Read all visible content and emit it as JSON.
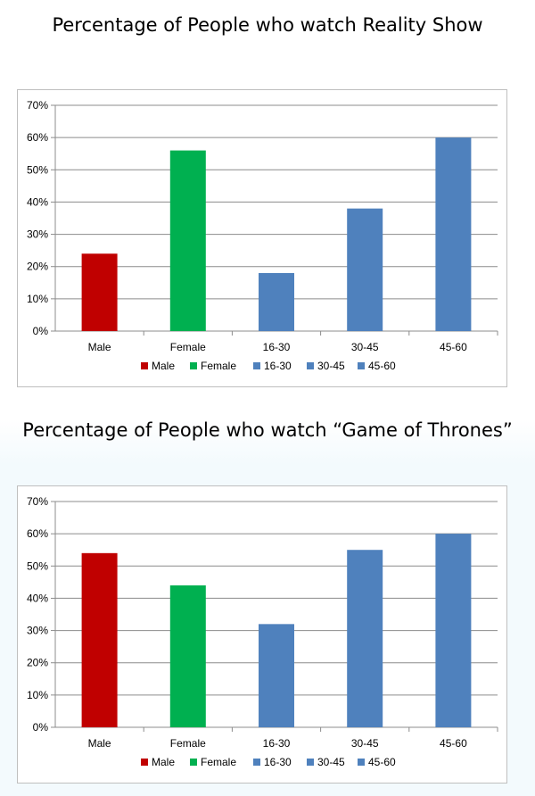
{
  "chart_data": [
    {
      "type": "bar",
      "title": "Percentage of People who watch Reality Show",
      "categories": [
        "Male",
        "Female",
        "16-30",
        "30-45",
        "45-60"
      ],
      "values": [
        24,
        56,
        18,
        38,
        60
      ],
      "colors": [
        "#c00000",
        "#00b050",
        "#4f81bd",
        "#4f81bd",
        "#4f81bd"
      ],
      "legend": [
        "Male",
        "Female",
        "16-30",
        "30-45",
        "45-60"
      ],
      "legend_position": "bottom",
      "ylim": [
        0,
        70
      ],
      "yticks": [
        "0%",
        "10%",
        "20%",
        "30%",
        "40%",
        "50%",
        "60%",
        "70%"
      ],
      "grid": true
    },
    {
      "type": "bar",
      "title": "Percentage of People who watch “Game of Thrones”",
      "categories": [
        "Male",
        "Female",
        "16-30",
        "30-45",
        "45-60"
      ],
      "values": [
        54,
        44,
        32,
        55,
        60
      ],
      "colors": [
        "#c00000",
        "#00b050",
        "#4f81bd",
        "#4f81bd",
        "#4f81bd"
      ],
      "legend": [
        "Male",
        "Female",
        "16-30",
        "30-45",
        "45-60"
      ],
      "legend_position": "bottom",
      "ylim": [
        0,
        70
      ],
      "yticks": [
        "0%",
        "10%",
        "20%",
        "30%",
        "40%",
        "50%",
        "60%",
        "70%"
      ],
      "grid": true
    }
  ]
}
